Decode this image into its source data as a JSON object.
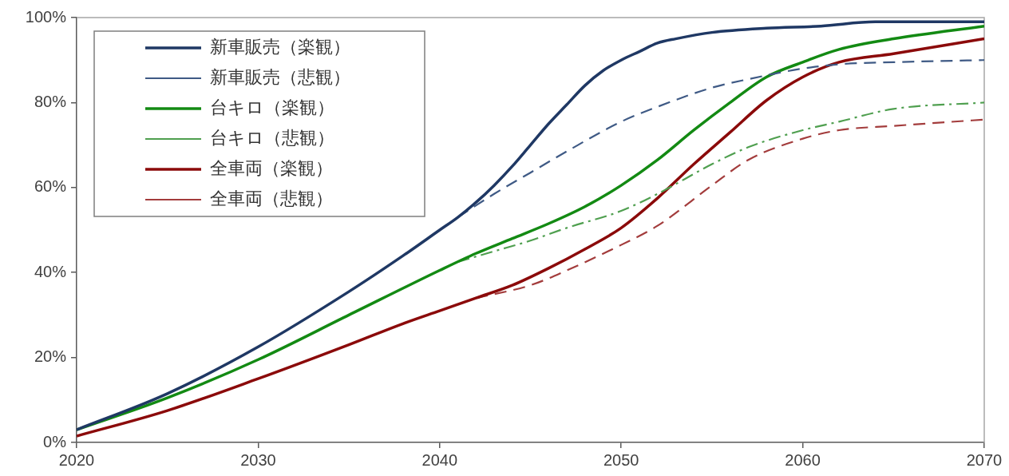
{
  "chart_data": {
    "type": "line",
    "xlim": [
      2020,
      2070
    ],
    "xticks": [
      2020,
      2030,
      2040,
      2050,
      2060,
      2070
    ],
    "ylim": [
      0,
      100
    ],
    "yticks": [
      {
        "value": 0,
        "label": "0%"
      },
      {
        "value": 20,
        "label": "20%"
      },
      {
        "value": 40,
        "label": "40%"
      },
      {
        "value": 60,
        "label": "60%"
      },
      {
        "value": 80,
        "label": "80%"
      },
      {
        "value": 100,
        "label": "100%"
      }
    ],
    "legend": "top left",
    "series": [
      {
        "name": "新車販売（楽観）",
        "color": "#1f3864",
        "line_style": "solid",
        "x": [
          2020,
          2025,
          2030,
          2035,
          2038,
          2040,
          2041,
          2042,
          2043,
          2044,
          2045,
          2046,
          2047,
          2048,
          2049,
          2050,
          2051,
          2052,
          2053,
          2055,
          2058,
          2061,
          2064,
          2070
        ],
        "values": [
          3,
          11.5,
          22.5,
          35.5,
          44,
          50,
          53,
          56.5,
          60.5,
          65,
          70,
          75,
          79.5,
          84,
          87.5,
          90,
          92,
          94,
          95,
          96.5,
          97.5,
          98,
          99,
          99
        ]
      },
      {
        "name": "新車販売（悲観）",
        "color": "#3f5a85",
        "line_style": "dashed",
        "x": [
          2041,
          2043,
          2045,
          2047,
          2050,
          2052,
          2055,
          2057,
          2060,
          2062,
          2065,
          2070
        ],
        "values": [
          53,
          58.5,
          63.5,
          68.5,
          75.5,
          79,
          83.5,
          85.5,
          88,
          89,
          89.5,
          90
        ]
      },
      {
        "name": "台キロ（楽観）",
        "color": "#138a13",
        "line_style": "solid",
        "x": [
          2020,
          2025,
          2030,
          2035,
          2040,
          2042,
          2044,
          2046,
          2048,
          2050,
          2052,
          2054,
          2056,
          2058,
          2060,
          2062,
          2065,
          2070
        ],
        "values": [
          3,
          10.5,
          19.5,
          30,
          40.5,
          44.5,
          48,
          51.5,
          55.5,
          60.5,
          66.5,
          73.5,
          80,
          86,
          89.5,
          92.5,
          95,
          98
        ]
      },
      {
        "name": "台キロ（悲観）",
        "color": "#4f9f4f",
        "line_style": "dashdot",
        "x": [
          2041,
          2043,
          2045,
          2047,
          2050,
          2052,
          2055,
          2057,
          2060,
          2062,
          2065,
          2070
        ],
        "values": [
          42.5,
          45,
          47.5,
          50.5,
          54.5,
          58.5,
          65.5,
          69.5,
          73.5,
          75.5,
          78.5,
          80
        ]
      },
      {
        "name": "全車両（楽観）",
        "color": "#8b0a0a",
        "line_style": "solid",
        "x": [
          2020,
          2025,
          2030,
          2035,
          2038,
          2040,
          2042,
          2044,
          2046,
          2048,
          2050,
          2052,
          2054,
          2056,
          2058,
          2060,
          2062,
          2065,
          2070
        ],
        "values": [
          1.5,
          7.5,
          15,
          23,
          28,
          31,
          34,
          37,
          41,
          45.5,
          50.5,
          57.5,
          65.5,
          73,
          80.5,
          86,
          89.5,
          91.5,
          95
        ]
      },
      {
        "name": "全車両（悲観）",
        "color": "#a33c3c",
        "line_style": "dashed",
        "x": [
          2042,
          2045,
          2047,
          2050,
          2052,
          2055,
          2057,
          2060,
          2062,
          2065,
          2070
        ],
        "values": [
          34,
          37,
          40.5,
          46.5,
          51,
          60.5,
          66.5,
          71.5,
          73.5,
          74.5,
          76
        ]
      }
    ]
  }
}
